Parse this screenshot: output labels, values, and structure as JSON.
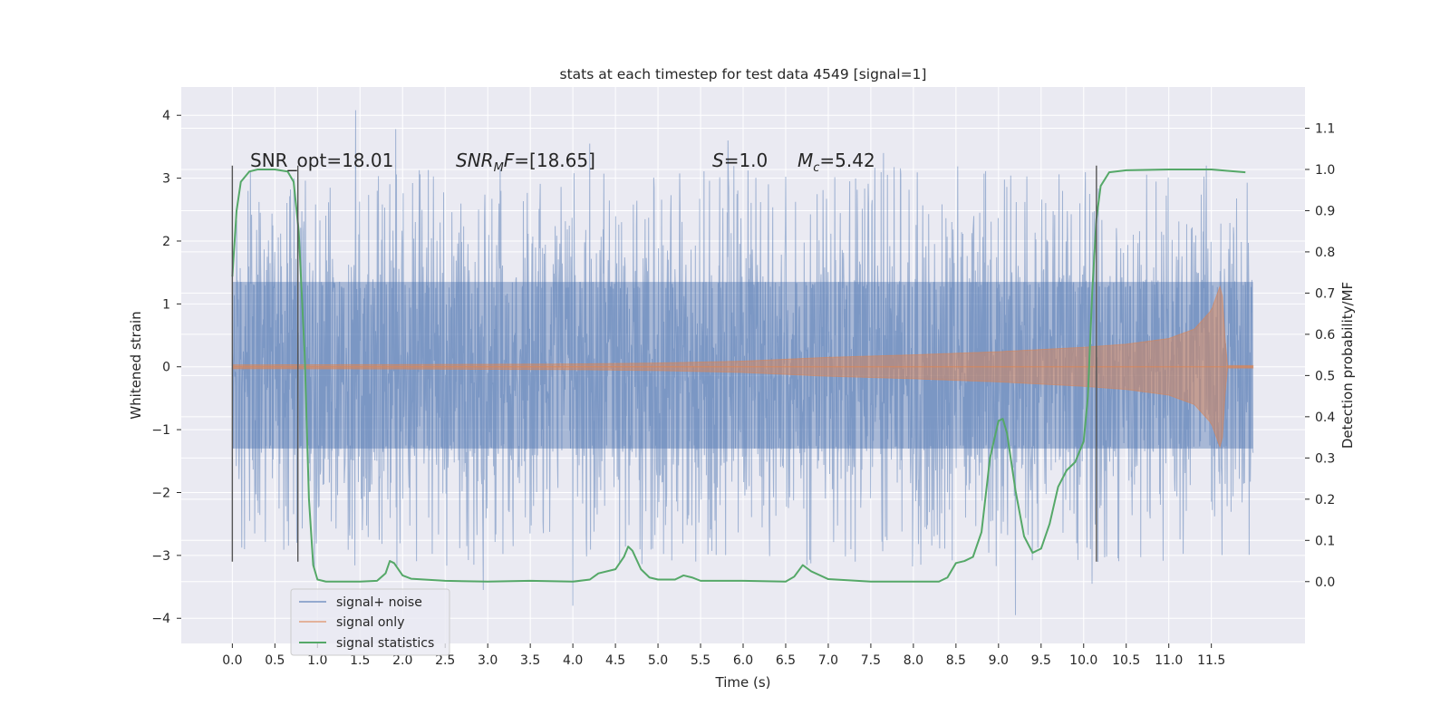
{
  "chart_data": {
    "type": "line",
    "title": "stats at each timestep for test data 4549 [signal=1]",
    "xlabel": "Time (s)",
    "ylabel_left": "Whitened strain",
    "ylabel_right": "Detection probability/MF",
    "xlim": [
      -0.6,
      12.6
    ],
    "ylim_left": [
      -4.4,
      4.45
    ],
    "ylim_right": [
      -0.15,
      1.2
    ],
    "x_ticks": [
      0.0,
      0.5,
      1.0,
      1.5,
      2.0,
      2.5,
      3.0,
      3.5,
      4.0,
      4.5,
      5.0,
      5.5,
      6.0,
      6.5,
      7.0,
      7.5,
      8.0,
      8.5,
      9.0,
      9.5,
      10.0,
      10.5,
      11.0,
      11.5
    ],
    "x_tick_labels": [
      "0.0",
      "0.5",
      "1.0",
      "1.5",
      "2.0",
      "2.5",
      "3.0",
      "3.5",
      "4.0",
      "4.5",
      "5.0",
      "5.5",
      "6.0",
      "6.5",
      "7.0",
      "7.5",
      "8.0",
      "8.5",
      "9.0",
      "9.5",
      "10.0",
      "10.5",
      "11.0",
      "11.5"
    ],
    "y_left_ticks": [
      -4,
      -3,
      -2,
      -1,
      0,
      1,
      2,
      3,
      4
    ],
    "y_left_tick_labels": [
      "−4",
      "−3",
      "−2",
      "−1",
      "0",
      "1",
      "2",
      "3",
      "4"
    ],
    "y_right_ticks": [
      0.0,
      0.1,
      0.2,
      0.3,
      0.4,
      0.5,
      0.6,
      0.7,
      0.8,
      0.9,
      1.0,
      1.1
    ],
    "y_right_tick_labels": [
      "0.0",
      "0.1",
      "0.2",
      "0.3",
      "0.4",
      "0.5",
      "0.6",
      "0.7",
      "0.8",
      "0.9",
      "1.0",
      "1.1"
    ],
    "grid": true,
    "legend_position": "lower-left",
    "series": [
      {
        "name": "signal+ noise",
        "axis": "left",
        "kind": "noisy-strain",
        "x_range": [
          0.0,
          11.99
        ],
        "core_band": [
          -1.3,
          1.35
        ],
        "upper_spike_max": 4.1,
        "lower_spike_min": -3.95,
        "notable_peaks": [
          [
            1.45,
            4.08
          ],
          [
            1.92,
            3.78
          ],
          [
            4.2,
            3.55
          ],
          [
            5.82,
            3.6
          ],
          [
            7.65,
            3.4
          ],
          [
            9.2,
            -3.95
          ],
          [
            4.0,
            -3.8
          ],
          [
            2.95,
            -3.55
          ],
          [
            10.1,
            -3.45
          ]
        ],
        "color": "#4c72b0"
      },
      {
        "name": "signal only",
        "axis": "left",
        "kind": "chirp",
        "x_range": [
          0.0,
          11.99
        ],
        "envelope": [
          [
            0.0,
            0.03
          ],
          [
            2.0,
            0.035
          ],
          [
            4.0,
            0.045
          ],
          [
            5.0,
            0.06
          ],
          [
            6.0,
            0.09
          ],
          [
            6.5,
            0.12
          ],
          [
            7.0,
            0.15
          ],
          [
            8.0,
            0.19
          ],
          [
            9.0,
            0.24
          ],
          [
            10.0,
            0.31
          ],
          [
            10.5,
            0.36
          ],
          [
            11.0,
            0.45
          ],
          [
            11.3,
            0.6
          ],
          [
            11.5,
            0.9
          ],
          [
            11.62,
            1.35
          ],
          [
            11.68,
            0.02
          ],
          [
            11.99,
            0.02
          ]
        ],
        "color": "#dd8452"
      },
      {
        "name": "signal statistics",
        "axis": "right",
        "x": [
          0.0,
          0.05,
          0.1,
          0.2,
          0.3,
          0.5,
          0.65,
          0.72,
          0.78,
          0.85,
          0.9,
          0.95,
          1.0,
          1.1,
          1.5,
          1.7,
          1.8,
          1.85,
          1.9,
          1.95,
          2.0,
          2.1,
          2.5,
          3.0,
          3.5,
          4.0,
          4.2,
          4.3,
          4.5,
          4.6,
          4.65,
          4.7,
          4.8,
          4.9,
          5.0,
          5.2,
          5.3,
          5.4,
          5.5,
          6.0,
          6.5,
          6.6,
          6.7,
          6.8,
          7.0,
          7.5,
          8.0,
          8.3,
          8.4,
          8.5,
          8.6,
          8.7,
          8.8,
          8.9,
          9.0,
          9.05,
          9.1,
          9.2,
          9.3,
          9.4,
          9.5,
          9.6,
          9.7,
          9.8,
          9.9,
          10.0,
          10.05,
          10.1,
          10.15,
          10.2,
          10.3,
          10.5,
          11.0,
          11.5,
          11.9
        ],
        "values": [
          0.74,
          0.9,
          0.97,
          0.995,
          1.0,
          1.0,
          0.995,
          0.97,
          0.85,
          0.55,
          0.2,
          0.04,
          0.005,
          0.0,
          0.0,
          0.002,
          0.02,
          0.05,
          0.045,
          0.03,
          0.015,
          0.007,
          0.002,
          0.0,
          0.002,
          0.0,
          0.005,
          0.02,
          0.03,
          0.06,
          0.085,
          0.075,
          0.03,
          0.01,
          0.005,
          0.005,
          0.015,
          0.01,
          0.002,
          0.002,
          0.0,
          0.012,
          0.04,
          0.025,
          0.006,
          0.0,
          0.0,
          0.0,
          0.01,
          0.045,
          0.05,
          0.06,
          0.12,
          0.3,
          0.39,
          0.395,
          0.36,
          0.22,
          0.11,
          0.07,
          0.08,
          0.14,
          0.23,
          0.27,
          0.29,
          0.34,
          0.45,
          0.7,
          0.88,
          0.96,
          0.993,
          0.998,
          1.0,
          1.0,
          0.993
        ],
        "color": "#55a868"
      }
    ],
    "annotations": [
      "SNR_opt=18.01",
      "SNR<sub>M</sub>F=[18.65]",
      "S=1.0",
      "M<sub>c</sub>=5.42"
    ],
    "vertical_markers_x": [
      0.0,
      0.77,
      10.15
    ],
    "vertical_markers_range_left": [
      -3.1,
      3.2
    ]
  }
}
